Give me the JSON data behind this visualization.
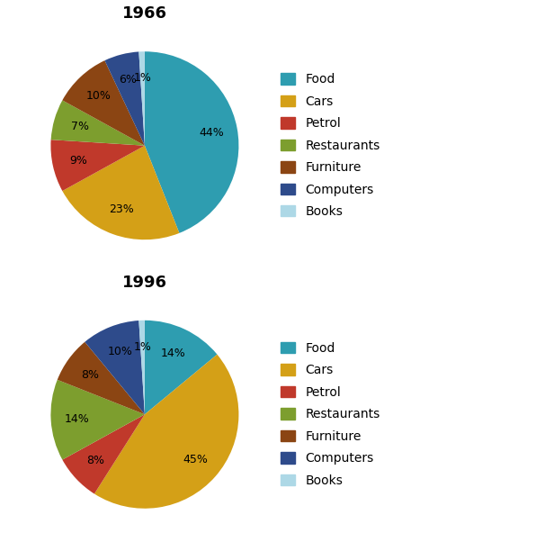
{
  "chart1": {
    "title": "1966",
    "labels": [
      "Food",
      "Cars",
      "Petrol",
      "Restaurants",
      "Furniture",
      "Computers",
      "Books"
    ],
    "values": [
      44,
      23,
      9,
      7,
      10,
      6,
      1
    ],
    "colors": [
      "#2E9DB0",
      "#D4A017",
      "#C0392B",
      "#7D9E2E",
      "#8B4513",
      "#2E4B8B",
      "#ADD8E6"
    ]
  },
  "chart2": {
    "title": "1996",
    "labels": [
      "Food",
      "Cars",
      "Petrol",
      "Restaurants",
      "Furniture",
      "Computers",
      "Books"
    ],
    "values": [
      14,
      45,
      8,
      14,
      8,
      10,
      1
    ],
    "colors": [
      "#2E9DB0",
      "#D4A017",
      "#C0392B",
      "#7D9E2E",
      "#8B4513",
      "#2E4B8B",
      "#ADD8E6"
    ]
  },
  "legend_labels": [
    "Food",
    "Cars",
    "Petrol",
    "Restaurants",
    "Furniture",
    "Computers",
    "Books"
  ],
  "legend_colors": [
    "#2E9DB0",
    "#D4A017",
    "#C0392B",
    "#7D9E2E",
    "#8B4513",
    "#2E4B8B",
    "#ADD8E6"
  ],
  "title_fontsize": 13,
  "label_fontsize": 9,
  "legend_fontsize": 10
}
